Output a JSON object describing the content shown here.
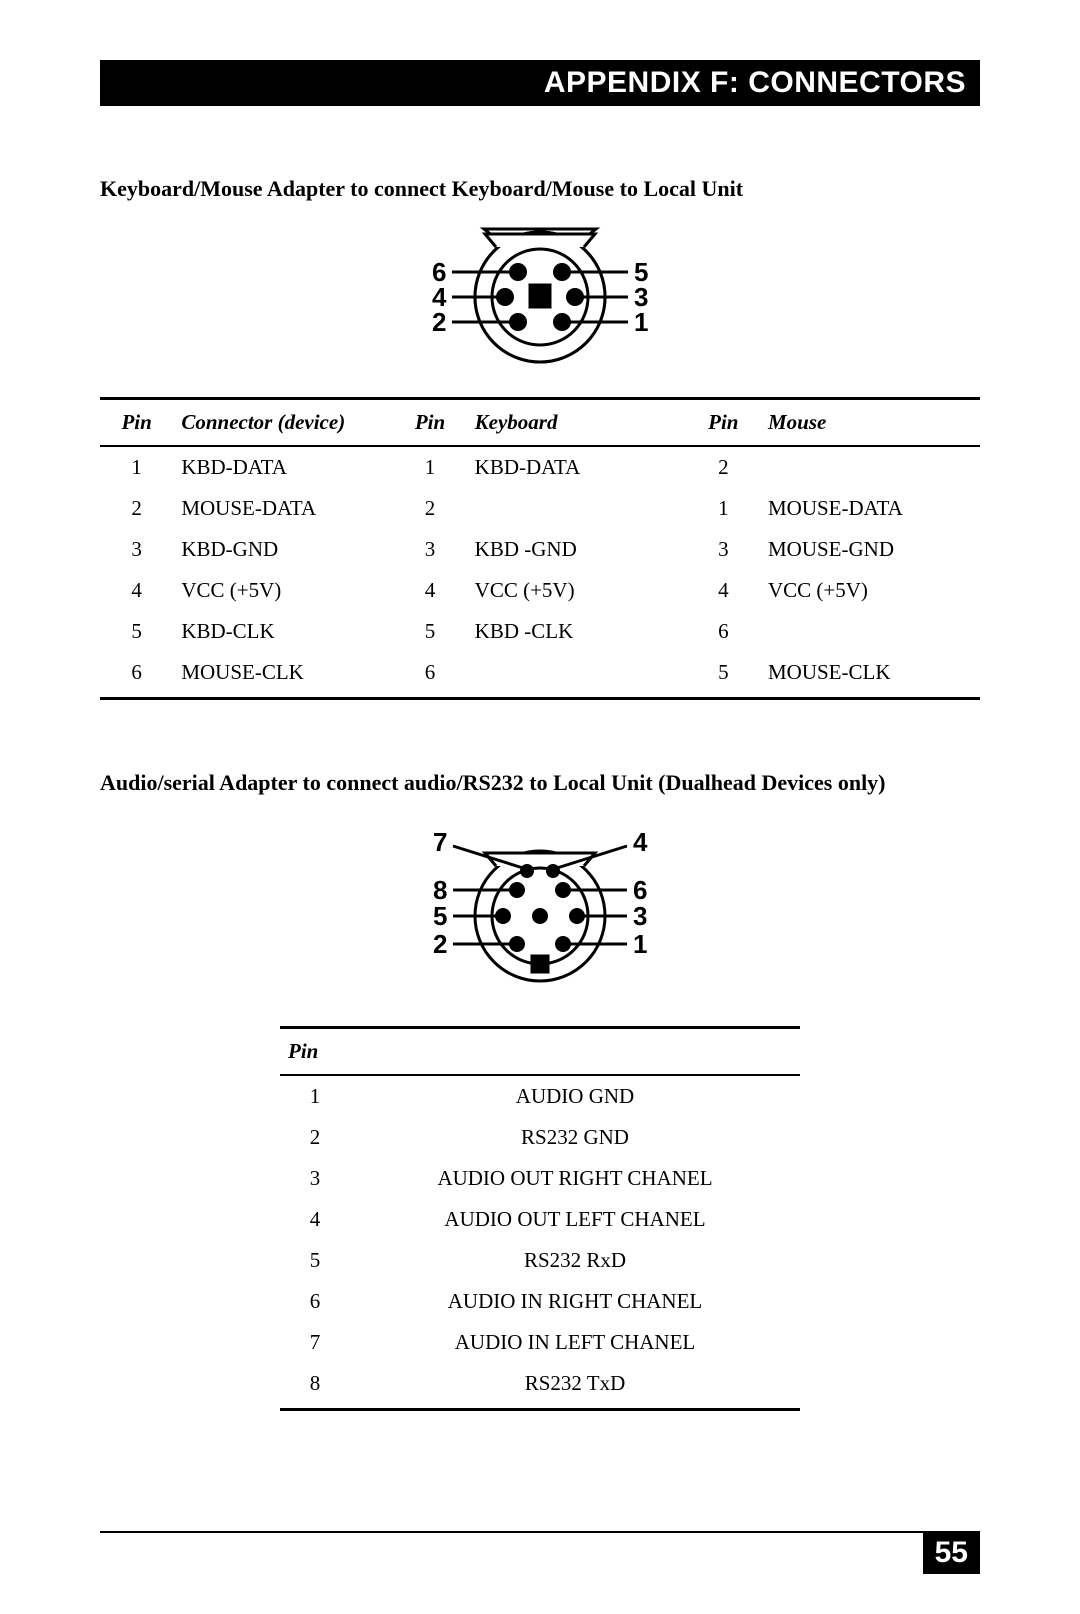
{
  "header": {
    "title": "APPENDIX F: CONNECTORS"
  },
  "section1": {
    "title": "Keyboard/Mouse Adapter to connect Keyboard/Mouse to Local Unit",
    "diagram": {
      "type": "connector-pinout",
      "pin_count": 6,
      "left_labels": [
        6,
        4,
        2
      ],
      "right_labels": [
        5,
        3,
        1
      ],
      "pin_label_fontsize": 26,
      "stroke_color": "#000000",
      "fill_color": "#000000",
      "background_color": "#ffffff",
      "diagram_width": 300,
      "diagram_height": 155
    },
    "table": {
      "type": "table",
      "columns": [
        "Pin",
        "Connector (device)",
        "Pin",
        "Keyboard",
        "Pin",
        "Mouse"
      ],
      "column_align": [
        "center",
        "left",
        "center",
        "left",
        "center",
        "left"
      ],
      "rows": [
        [
          "1",
          "KBD-DATA",
          "1",
          "KBD-DATA",
          "2",
          ""
        ],
        [
          "2",
          "MOUSE-DATA",
          "2",
          "",
          "1",
          "MOUSE-DATA"
        ],
        [
          "3",
          "KBD-GND",
          "3",
          "KBD -GND",
          "3",
          "MOUSE-GND"
        ],
        [
          "4",
          "VCC (+5V)",
          "4",
          "VCC (+5V)",
          "4",
          "VCC (+5V)"
        ],
        [
          "5",
          "KBD-CLK",
          "5",
          "KBD -CLK",
          "6",
          ""
        ],
        [
          "6",
          "MOUSE-CLK",
          "6",
          "",
          "5",
          "MOUSE-CLK"
        ]
      ],
      "header_font_style": "italic bold",
      "body_fontsize": 21,
      "border_top_weight": 3,
      "header_rule_weight": 2,
      "bottom_rule_weight": 3,
      "border_color": "#000000"
    }
  },
  "section2": {
    "title": "Audio/serial Adapter to connect audio/RS232 to Local Unit (Dualhead Devices only)",
    "diagram": {
      "type": "connector-pinout",
      "pin_count": 8,
      "left_labels": [
        7,
        8,
        5,
        2
      ],
      "right_labels": [
        4,
        6,
        3,
        1
      ],
      "pin_label_fontsize": 26,
      "stroke_color": "#000000",
      "fill_color": "#000000",
      "background_color": "#ffffff",
      "diagram_width": 290,
      "diagram_height": 190
    },
    "table": {
      "type": "table",
      "columns": [
        "Pin",
        ""
      ],
      "column_align": [
        "center",
        "center"
      ],
      "rows": [
        [
          "1",
          "AUDIO GND"
        ],
        [
          "2",
          "RS232 GND"
        ],
        [
          "3",
          "AUDIO OUT RIGHT CHANEL"
        ],
        [
          "4",
          "AUDIO OUT LEFT CHANEL"
        ],
        [
          "5",
          "RS232 RxD"
        ],
        [
          "6",
          "AUDIO IN RIGHT CHANEL"
        ],
        [
          "7",
          "AUDIO IN LEFT CHANEL"
        ],
        [
          "8",
          "RS232 TxD"
        ]
      ],
      "header_font_style": "italic bold",
      "body_fontsize": 21,
      "border_top_weight": 3,
      "header_rule_weight": 2,
      "bottom_rule_weight": 3,
      "border_color": "#000000"
    }
  },
  "footer": {
    "page_number": "55"
  }
}
